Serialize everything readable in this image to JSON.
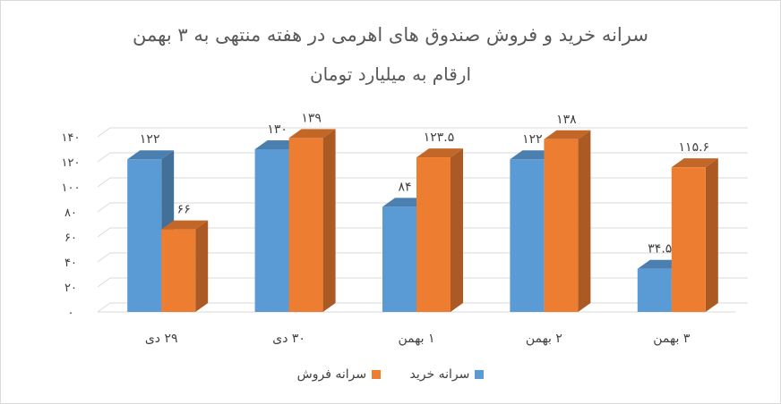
{
  "chart_data": {
    "type": "bar",
    "title": "سرانه خرید و فروش صندوق های اهرمی در هفته منتهی به ۳ بهمن",
    "subtitle": "ارقام به میلیارد تومان",
    "categories": [
      "۲۹ دی",
      "۳۰ دی",
      "۱ بهمن",
      "۲ بهمن",
      "۳ بهمن"
    ],
    "series": [
      {
        "name": "سرانه خرید",
        "color": "#5b9bd5",
        "values": [
          122,
          130,
          84,
          122,
          34.5
        ],
        "labels": [
          "۱۲۲",
          "۱۳۰",
          "۸۴",
          "۱۲۲",
          "۳۴.۵"
        ]
      },
      {
        "name": "سرانه فروش",
        "color": "#ed7d31",
        "values": [
          66,
          139,
          123.5,
          138,
          115.6
        ],
        "labels": [
          "۶۶",
          "۱۳۹",
          "۱۲۳.۵",
          "۱۳۸",
          "۱۱۵.۶"
        ]
      }
    ],
    "yticks": [
      0,
      20,
      40,
      60,
      80,
      100,
      120,
      140
    ],
    "ytick_labels": [
      "۰",
      "۲۰",
      "۴۰",
      "۶۰",
      "۸۰",
      "۱۰۰",
      "۱۲۰",
      "۱۴۰"
    ],
    "ylim": [
      0,
      140
    ],
    "grid": true,
    "style": "3d-column",
    "legend_position": "bottom"
  }
}
